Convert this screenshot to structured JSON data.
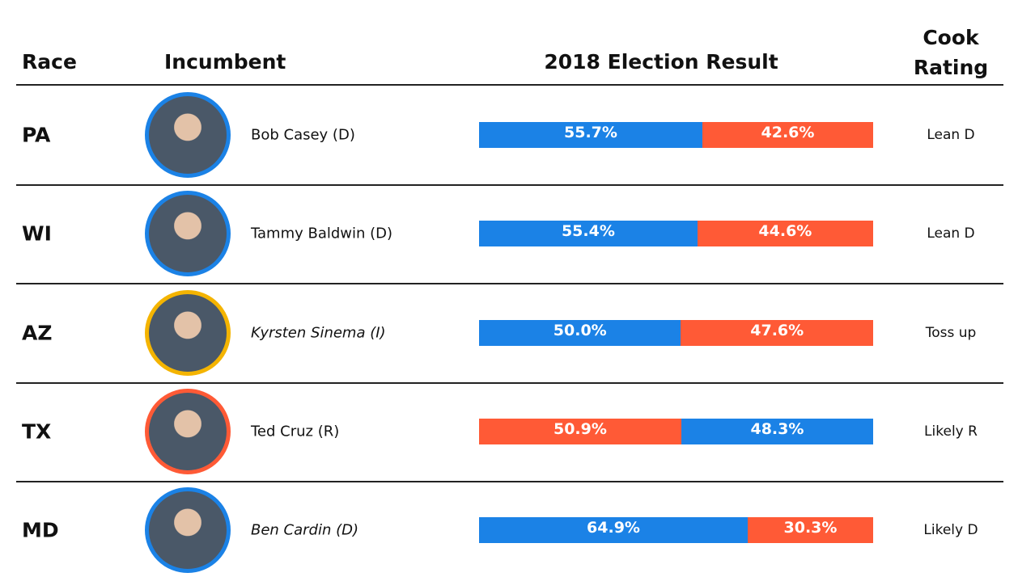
{
  "table": {
    "columns": [
      "Race",
      "Incumbent",
      "2018 Election Result",
      "Cook Rating"
    ],
    "rows": [
      {
        "race": "PA",
        "incumbent": "Bob Casey (D)",
        "italic": false,
        "photo_border": "#1b82e6",
        "results": [
          {
            "value": 55.7,
            "label": "55.7%",
            "color": "#1b82e6"
          },
          {
            "value": 42.6,
            "label": "42.6%",
            "color": "#ff5a36"
          }
        ],
        "rating": "Lean D"
      },
      {
        "race": "WI",
        "incumbent": "Tammy Baldwin (D)",
        "italic": false,
        "photo_border": "#1b82e6",
        "results": [
          {
            "value": 55.4,
            "label": "55.4%",
            "color": "#1b82e6"
          },
          {
            "value": 44.6,
            "label": "44.6%",
            "color": "#ff5a36"
          }
        ],
        "rating": "Lean D"
      },
      {
        "race": "AZ",
        "incumbent": "Kyrsten Sinema (I)",
        "italic": true,
        "photo_border": "#f4b400",
        "results": [
          {
            "value": 50.0,
            "label": "50.0%",
            "color": "#1b82e6"
          },
          {
            "value": 47.6,
            "label": "47.6%",
            "color": "#ff5a36"
          }
        ],
        "rating": "Toss up"
      },
      {
        "race": "TX",
        "incumbent": "Ted Cruz (R)",
        "italic": false,
        "photo_border": "#ff5a36",
        "results": [
          {
            "value": 50.9,
            "label": "50.9%",
            "color": "#ff5a36"
          },
          {
            "value": 48.3,
            "label": "48.3%",
            "color": "#1b82e6"
          }
        ],
        "rating": "Likely R"
      },
      {
        "race": "MD",
        "incumbent": "Ben Cardin (D)",
        "italic": true,
        "photo_border": "#1b82e6",
        "results": [
          {
            "value": 64.9,
            "label": "64.9%",
            "color": "#1b82e6"
          },
          {
            "value": 30.3,
            "label": "30.3%",
            "color": "#ff5a36"
          }
        ],
        "rating": "Likely D"
      }
    ]
  }
}
